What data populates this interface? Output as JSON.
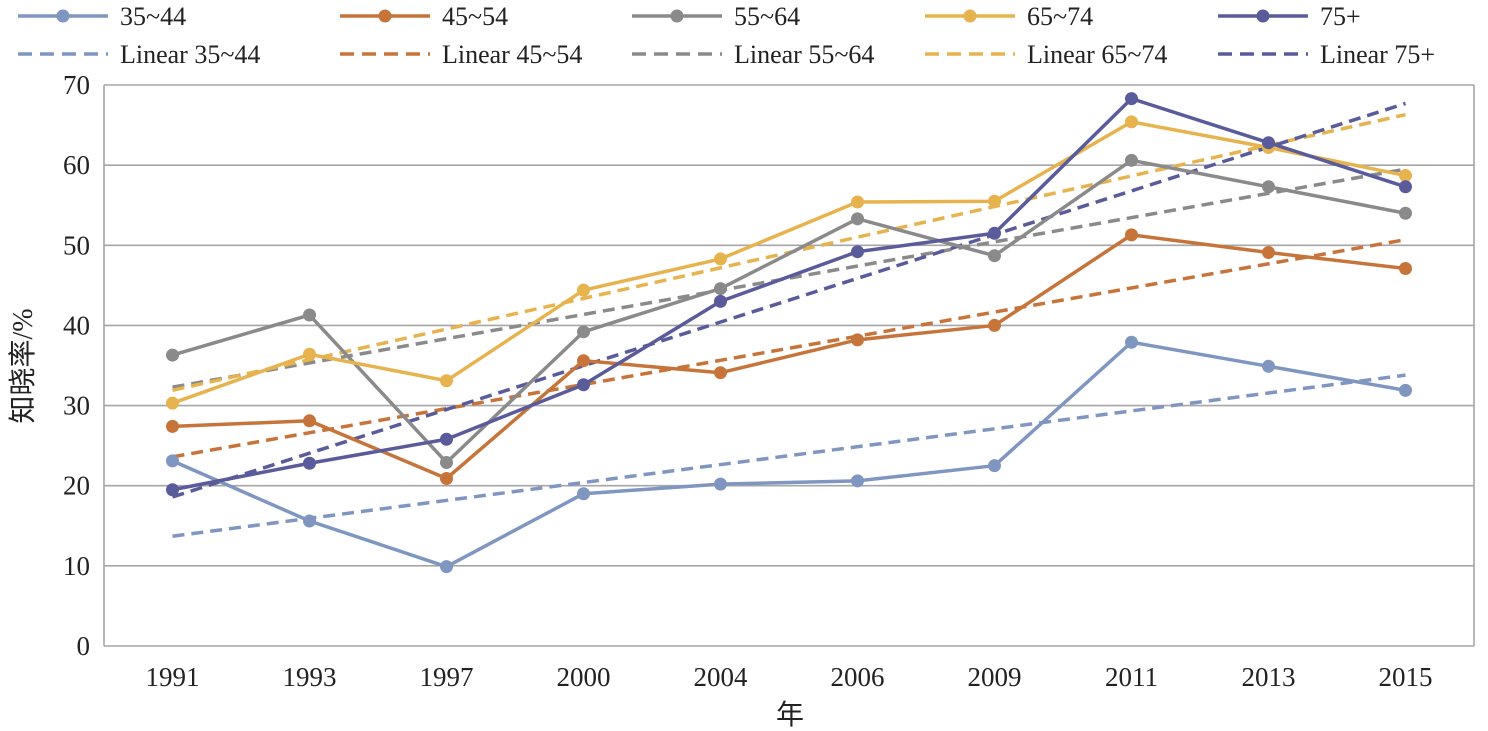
{
  "chart_data": {
    "type": "line",
    "title": "",
    "xlabel": "年",
    "ylabel": "知晓率/%",
    "ylim": [
      0,
      70
    ],
    "yticks": [
      0,
      10,
      20,
      30,
      40,
      50,
      60,
      70
    ],
    "grid": true,
    "legend_position": "top",
    "categories": [
      "1991",
      "1993",
      "1997",
      "2000",
      "2004",
      "2006",
      "2009",
      "2011",
      "2013",
      "2015"
    ],
    "series": [
      {
        "name": "35~44",
        "color": "#7f96c1",
        "values": [
          23.1,
          15.6,
          9.9,
          19.0,
          20.2,
          20.6,
          22.5,
          37.9,
          34.9,
          31.9
        ]
      },
      {
        "name": "45~54",
        "color": "#c7743b",
        "values": [
          27.4,
          28.1,
          20.9,
          35.6,
          34.1,
          38.2,
          40.0,
          51.3,
          49.1,
          47.1
        ]
      },
      {
        "name": "55~64",
        "color": "#8a8a8a",
        "values": [
          36.3,
          41.3,
          22.9,
          39.2,
          44.6,
          53.3,
          48.7,
          60.6,
          57.3,
          54.0
        ]
      },
      {
        "name": "65~74",
        "color": "#e6b34e",
        "values": [
          30.3,
          36.4,
          33.1,
          44.4,
          48.3,
          55.4,
          55.5,
          65.4,
          62.2,
          58.7
        ]
      },
      {
        "name": "75+",
        "color": "#5a5b9a",
        "values": [
          19.5,
          22.8,
          25.8,
          32.6,
          43.0,
          49.2,
          51.5,
          68.3,
          62.8,
          57.3
        ]
      }
    ],
    "trendlines": [
      {
        "name": "Linear 35~44",
        "color": "#7f96c1",
        "start": 13.7,
        "end": 33.8
      },
      {
        "name": "Linear 45~54",
        "color": "#c7743b",
        "start": 23.6,
        "end": 50.7
      },
      {
        "name": "Linear 55~64",
        "color": "#8a8a8a",
        "start": 32.3,
        "end": 59.5
      },
      {
        "name": "Linear 65~74",
        "color": "#e6b34e",
        "start": 31.9,
        "end": 66.3
      },
      {
        "name": "Linear 75+",
        "color": "#5a5b9a",
        "start": 18.6,
        "end": 67.7
      }
    ]
  }
}
